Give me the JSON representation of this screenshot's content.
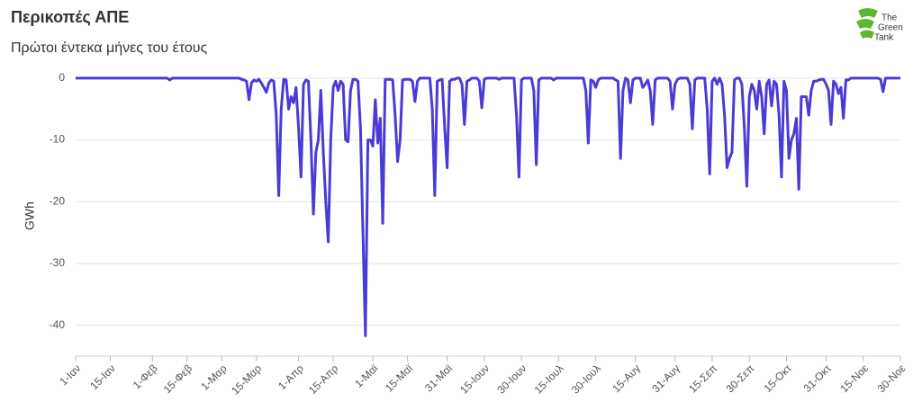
{
  "chart_data": {
    "type": "line",
    "title": "Περικοπές ΑΠΕ",
    "subtitle": "Πρώτοι έντεκα μήνες του έτους",
    "ylabel": "GWh",
    "logo": [
      "The",
      "Green",
      "Tank"
    ],
    "color": "#4a3bd6",
    "grid": true,
    "xlim": [
      0,
      333
    ],
    "ylim": [
      -45,
      1
    ],
    "yticks": [
      0,
      -10,
      -20,
      -30,
      -40
    ],
    "xticks": [
      {
        "value": 0,
        "label": "1-Ιαν"
      },
      {
        "value": 14,
        "label": "15-Ιαν"
      },
      {
        "value": 31,
        "label": "1-Φεβ"
      },
      {
        "value": 45,
        "label": "15-Φεβ"
      },
      {
        "value": 59,
        "label": "1-Μαρ"
      },
      {
        "value": 73,
        "label": "15-Μαρ"
      },
      {
        "value": 90,
        "label": "1-Απρ"
      },
      {
        "value": 104,
        "label": "15-Απρ"
      },
      {
        "value": 120,
        "label": "1-Μαϊ"
      },
      {
        "value": 134,
        "label": "15-Μαϊ"
      },
      {
        "value": 150,
        "label": "31-Μαϊ"
      },
      {
        "value": 165,
        "label": "15-Ιουν"
      },
      {
        "value": 180,
        "label": "30-Ιουν"
      },
      {
        "value": 195,
        "label": "15-Ιουλ"
      },
      {
        "value": 210,
        "label": "30-Ιουλ"
      },
      {
        "value": 226,
        "label": "15-Αυγ"
      },
      {
        "value": 242,
        "label": "31-Αυγ"
      },
      {
        "value": 257,
        "label": "15-Σεπ"
      },
      {
        "value": 272,
        "label": "30-Σεπ"
      },
      {
        "value": 287,
        "label": "15-Οκτ"
      },
      {
        "value": 303,
        "label": "31-Οκτ"
      },
      {
        "value": 318,
        "label": "15-Νοε"
      },
      {
        "value": 333,
        "label": "30-Νοε"
      }
    ],
    "values": [
      0,
      0,
      0,
      0,
      0,
      0,
      0,
      0,
      0,
      0,
      0,
      0,
      0,
      0,
      0,
      0,
      0,
      0,
      0,
      0,
      0,
      0,
      0,
      0,
      0,
      0,
      0,
      0,
      0,
      0,
      0,
      0,
      0,
      0,
      0,
      0,
      0,
      0,
      -0.3,
      0,
      0,
      0,
      0,
      0,
      0,
      0,
      0,
      0,
      0,
      0,
      0,
      0,
      0,
      0,
      0,
      0,
      0,
      0,
      0,
      0,
      0,
      0,
      0,
      0,
      0,
      0,
      0,
      -0.2,
      -0.3,
      -0.5,
      -3.5,
      -0.8,
      -0.3,
      -0.5,
      -0.2,
      -0.8,
      -1.5,
      -2.3,
      -0.8,
      -0.3,
      -0.5,
      -6,
      -19,
      -5,
      -0.2,
      -0.3,
      -5,
      -3,
      -4,
      -1.5,
      -8,
      -16,
      -1,
      -0.3,
      -0.5,
      -10,
      -22,
      -12,
      -10,
      -2,
      -12,
      -20,
      -26.5,
      -10,
      -1.5,
      -0.5,
      -2,
      -0.5,
      -1,
      -10,
      -10.3,
      -2,
      -0.2,
      -0.2,
      -0.5,
      -8,
      -25,
      -41.7,
      -10,
      -10,
      -11,
      -3.5,
      -10.5,
      -6.5,
      -23.5,
      -0.2,
      -0.2,
      -0.2,
      -0.3,
      -6,
      -13.5,
      -10,
      -0.3,
      -0.2,
      -0.2,
      -0.2,
      -0.5,
      -3.8,
      -0.5,
      0,
      0,
      0,
      0,
      0,
      -5,
      -19,
      -0.5,
      -0.3,
      -0.2,
      -8,
      -14.5,
      -0.5,
      -0.2,
      -0.2,
      0,
      0,
      -1,
      -7.5,
      -0.5,
      -0.3,
      0,
      0,
      0,
      -0.5,
      -4.8,
      -0.2,
      0,
      0,
      0,
      0,
      0,
      -0.2,
      0,
      0,
      0,
      0,
      0,
      0,
      -6,
      -16,
      -0.3,
      0,
      0,
      0,
      0,
      -2,
      -14,
      -0.3,
      0,
      0,
      0,
      0,
      0,
      -0.3,
      0,
      0,
      0,
      0,
      0,
      0,
      0,
      0,
      0,
      0,
      0,
      0,
      -2,
      -10.5,
      -0.3,
      -0.5,
      -1.5,
      -0.3,
      0,
      0,
      0,
      0,
      0,
      0,
      -0.3,
      -0.5,
      -13,
      -2,
      0,
      -0.3,
      -4,
      -0.3,
      0,
      0,
      0,
      -1.5,
      -1,
      -0.3,
      -2,
      -7.5,
      -0.3,
      0,
      0,
      0,
      0,
      0,
      -0.5,
      -5,
      -1,
      -0.2,
      0,
      0,
      0,
      0,
      -1,
      -8.2,
      -0.3,
      0,
      0,
      0,
      0,
      -5,
      -15.5,
      -0.5,
      0,
      -1,
      0,
      -1,
      -6,
      -14.5,
      -13,
      -12,
      -0.3,
      0,
      0,
      -1,
      -8,
      -17.5,
      -3,
      -1,
      -2,
      -5,
      -0.5,
      -3,
      -9,
      -1,
      -0.3,
      -4.5,
      -0.5,
      -1,
      -6,
      -16,
      -0.5,
      -2,
      -13,
      -10,
      -9,
      -6.5,
      -18,
      -3,
      -3,
      -3,
      -6,
      -2,
      -0.5,
      -0.5,
      -0.3,
      -0.2,
      -0.2,
      -1,
      -2,
      -7.5,
      -0.5,
      -1,
      -2.5,
      -1.5,
      -6.5,
      -0.3,
      -0.3,
      0,
      0,
      0,
      0,
      0,
      0,
      0,
      0,
      0,
      0,
      0,
      0,
      -0.2,
      -2.2,
      0,
      0,
      0,
      0,
      0,
      0,
      0
    ]
  }
}
